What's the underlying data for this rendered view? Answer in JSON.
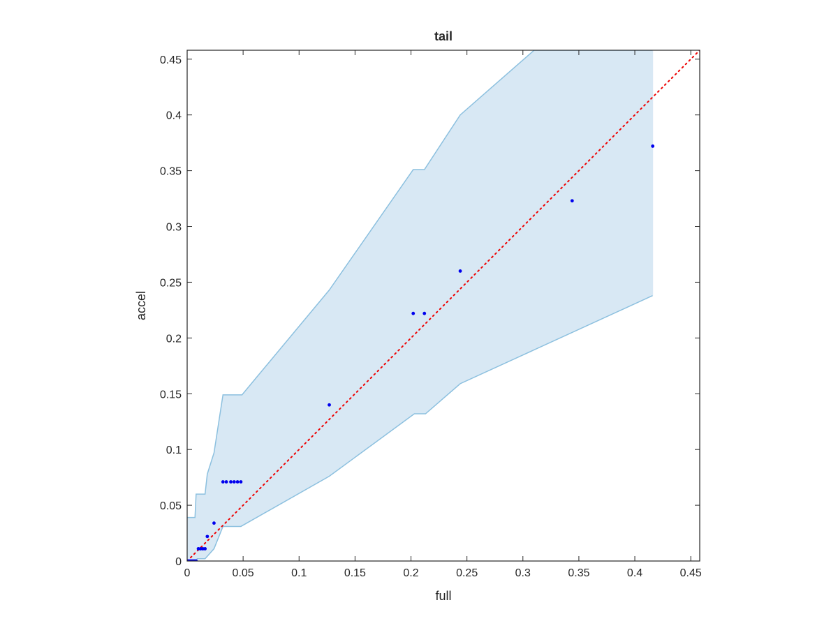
{
  "chart_data": {
    "type": "scatter",
    "title": "tail",
    "xlabel": "full",
    "ylabel": "accel",
    "xlim": [
      0,
      0.458
    ],
    "ylim": [
      0,
      0.458
    ],
    "x_ticks": [
      0,
      0.05,
      0.1,
      0.15,
      0.2,
      0.25,
      0.3,
      0.35,
      0.4,
      0.45
    ],
    "x_tick_labels": [
      "0",
      "0.05",
      "0.1",
      "0.15",
      "0.2",
      "0.25",
      "0.3",
      "0.35",
      "0.4",
      "0.45"
    ],
    "y_ticks": [
      0,
      0.05,
      0.1,
      0.15,
      0.2,
      0.25,
      0.3,
      0.35,
      0.4,
      0.45
    ],
    "y_tick_labels": [
      "0",
      "0.05",
      "0.1",
      "0.15",
      "0.2",
      "0.25",
      "0.3",
      "0.35",
      "0.4",
      "0.45"
    ],
    "grid": false,
    "colors": {
      "points": "#0000ee",
      "reference_line": "#ee0000",
      "band_fill": "#d8e8f4",
      "band_edge": "#8cc0df",
      "axes": "#262626"
    },
    "reference_line": {
      "style": "dotted",
      "from": [
        0,
        0
      ],
      "to": [
        0.458,
        0.458
      ]
    },
    "band": {
      "upper": [
        [
          0,
          0.039
        ],
        [
          0.007,
          0.039
        ],
        [
          0.008,
          0.06
        ],
        [
          0.016,
          0.06
        ],
        [
          0.018,
          0.078
        ],
        [
          0.024,
          0.097
        ],
        [
          0.032,
          0.149
        ],
        [
          0.049,
          0.149
        ],
        [
          0.127,
          0.243
        ],
        [
          0.202,
          0.351
        ],
        [
          0.212,
          0.351
        ],
        [
          0.244,
          0.4
        ],
        [
          0.31,
          0.458
        ],
        [
          0.416,
          0.458
        ]
      ],
      "lower": [
        [
          0,
          0
        ],
        [
          0.008,
          0
        ],
        [
          0.009,
          0.002
        ],
        [
          0.016,
          0.002
        ],
        [
          0.024,
          0.011
        ],
        [
          0.032,
          0.031
        ],
        [
          0.048,
          0.031
        ],
        [
          0.127,
          0.076
        ],
        [
          0.203,
          0.132
        ],
        [
          0.213,
          0.132
        ],
        [
          0.244,
          0.159
        ],
        [
          0.416,
          0.238
        ]
      ]
    },
    "points": [
      [
        0.0,
        0.0
      ],
      [
        0.001,
        0.0
      ],
      [
        0.002,
        0.0
      ],
      [
        0.003,
        0.0
      ],
      [
        0.004,
        0.0
      ],
      [
        0.005,
        0.0
      ],
      [
        0.006,
        0.0
      ],
      [
        0.007,
        0.0
      ],
      [
        0.008,
        0.0
      ],
      [
        0.01,
        0.011
      ],
      [
        0.012,
        0.011
      ],
      [
        0.014,
        0.011
      ],
      [
        0.016,
        0.011
      ],
      [
        0.018,
        0.022
      ],
      [
        0.024,
        0.034
      ],
      [
        0.032,
        0.071
      ],
      [
        0.035,
        0.071
      ],
      [
        0.039,
        0.071
      ],
      [
        0.042,
        0.071
      ],
      [
        0.045,
        0.071
      ],
      [
        0.048,
        0.071
      ],
      [
        0.127,
        0.14
      ],
      [
        0.202,
        0.222
      ],
      [
        0.212,
        0.222
      ],
      [
        0.244,
        0.26
      ],
      [
        0.344,
        0.323
      ],
      [
        0.416,
        0.372
      ]
    ]
  }
}
